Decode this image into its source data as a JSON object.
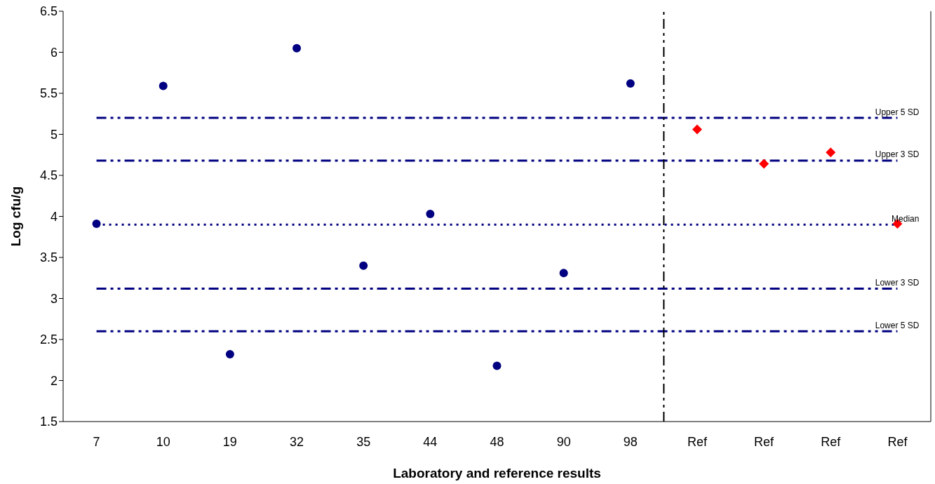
{
  "chart_data": {
    "type": "scatter",
    "xlabel": "Laboratory and reference results",
    "ylabel": "Log cfu/g",
    "categories": [
      "7",
      "10",
      "19",
      "32",
      "35",
      "44",
      "48",
      "90",
      "98",
      "Ref",
      "Ref",
      "Ref",
      "Ref"
    ],
    "series": [
      {
        "color": "#000080",
        "marker": "circle",
        "values": [
          3.91,
          5.59,
          2.32,
          6.05,
          3.4,
          4.03,
          2.18,
          3.31,
          5.62,
          null,
          null,
          null,
          null
        ]
      },
      {
        "color": "#ff0000",
        "marker": "diamond",
        "values": [
          null,
          null,
          null,
          null,
          null,
          null,
          null,
          null,
          null,
          5.06,
          4.64,
          4.78,
          3.91
        ]
      }
    ],
    "ylim": [
      1.5,
      6.5
    ],
    "yticks": [
      1.5,
      2,
      2.5,
      3,
      3.5,
      4,
      4.5,
      5,
      5.5,
      6,
      6.5
    ],
    "ref_lines": [
      {
        "axis": "y",
        "value": 5.2,
        "label": "Upper 5 SD",
        "color": "#000080",
        "line_style": "dashed"
      },
      {
        "axis": "y",
        "value": 4.68,
        "label": "Upper 3 SD",
        "color": "#000080",
        "line_style": "dashed"
      },
      {
        "axis": "y",
        "value": 3.9,
        "label": "Median",
        "color": "#000080",
        "line_style": "dotted"
      },
      {
        "axis": "y",
        "value": 3.12,
        "label": "Lower 3 SD",
        "color": "#000080",
        "line_style": "dashed"
      },
      {
        "axis": "y",
        "value": 2.6,
        "label": "Lower 5 SD",
        "color": "#000080",
        "line_style": "dashed"
      },
      {
        "axis": "x",
        "value": "98",
        "color": "#000000",
        "line_style": "dashed"
      }
    ]
  }
}
